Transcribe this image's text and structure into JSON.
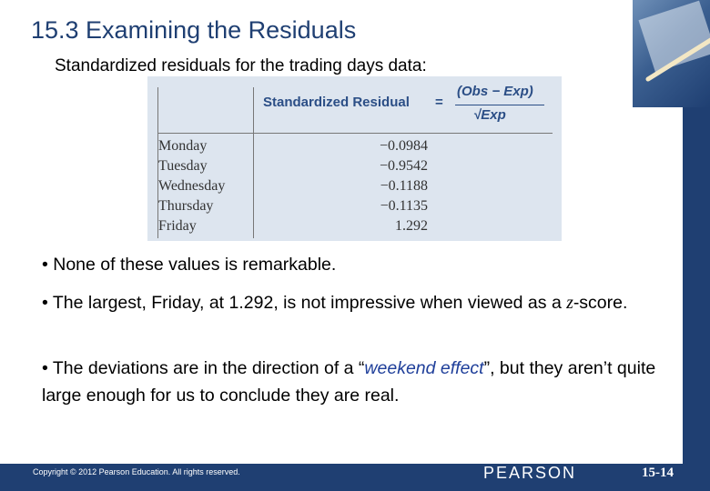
{
  "slide": {
    "title": "15.3 Examining the Residuals",
    "subtitle": "Standardized residuals for the trading days data:"
  },
  "table": {
    "column_header": "Standardized Residual",
    "formula": {
      "equals": "=",
      "numerator": "(Obs − Exp)",
      "denominator": "√Exp"
    },
    "rows": [
      {
        "day": "Monday",
        "value": "−0.0984"
      },
      {
        "day": "Tuesday",
        "value": "−0.9542"
      },
      {
        "day": "Wednesday",
        "value": "−0.1188"
      },
      {
        "day": "Thursday",
        "value": "−0.1135"
      },
      {
        "day": "Friday",
        "value": "1.292"
      }
    ]
  },
  "bullets": {
    "b1": "• None of these values is remarkable.",
    "b2": {
      "pre": "• The largest, Friday, at 1.292, is not impressive when viewed as a ",
      "var": "z",
      "post": "-score."
    },
    "b3": {
      "pre": "• The deviations are in the direction of a “",
      "emph": "weekend effect",
      "post": "”, but they aren’t quite large enough for us to conclude they are real."
    }
  },
  "footer": {
    "copyright": "Copyright © 2012 Pearson Education. All rights reserved.",
    "brand": "PEARSON",
    "page_number": "15-14"
  },
  "colors": {
    "title": "#1f3f72",
    "accent_bar": "#1f3f72",
    "table_bg": "#dde5ef",
    "table_header": "#2b4e86",
    "emphasis": "#1f3f9a"
  }
}
